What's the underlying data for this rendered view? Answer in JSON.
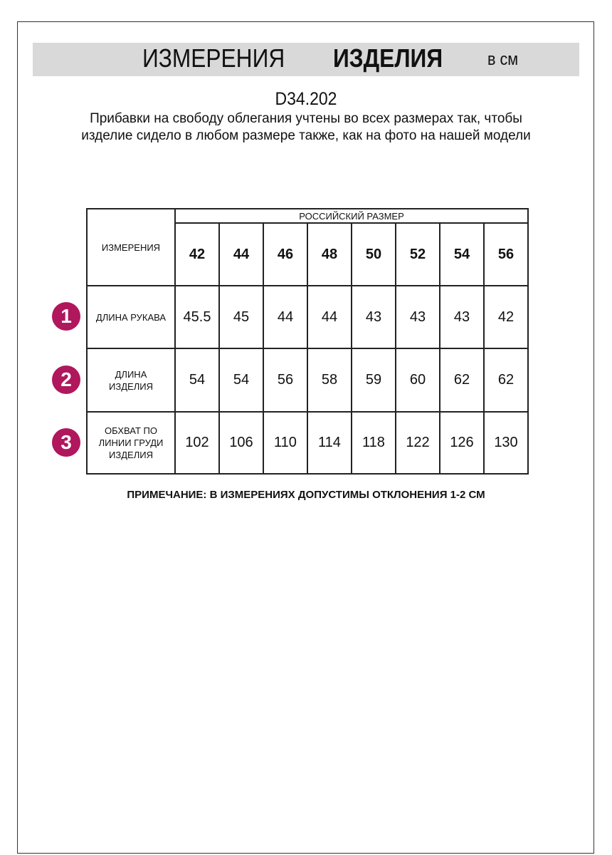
{
  "header": {
    "title_regular": "ИЗМЕРЕНИЯ",
    "title_bold": "ИЗДЕЛИЯ",
    "unit": "в см",
    "banner_color": "#d9d9d9"
  },
  "product_code": "D34.202",
  "description": "Прибавки на свободу облегания учтены во всех размерах так, чтобы изделие сидело в любом размере также, как на фото на нашей модели",
  "table": {
    "corner_label": "ИЗМЕРЕНИЯ",
    "group_label": "РОССИЙСКИЙ РАЗМЕР",
    "sizes": [
      "42",
      "44",
      "46",
      "48",
      "50",
      "52",
      "54",
      "56"
    ],
    "rows": [
      {
        "badge": "1",
        "label": "ДЛИНА РУКАВА",
        "values": [
          "45.5",
          "45",
          "44",
          "44",
          "43",
          "43",
          "43",
          "42"
        ]
      },
      {
        "badge": "2",
        "label": "ДЛИНА ИЗДЕЛИЯ",
        "values": [
          "54",
          "54",
          "56",
          "58",
          "59",
          "60",
          "62",
          "62"
        ]
      },
      {
        "badge": "3",
        "label": "ОБХВАТ ПО ЛИНИИ ГРУДИ ИЗДЕЛИЯ",
        "values": [
          "102",
          "106",
          "110",
          "114",
          "118",
          "122",
          "126",
          "130"
        ]
      }
    ],
    "badge_color": "#b0175c"
  },
  "note": "ПРИМЕЧАНИЕ: В ИЗМЕРЕНИЯХ ДОПУСТИМЫ ОТКЛОНЕНИЯ 1-2 СМ"
}
